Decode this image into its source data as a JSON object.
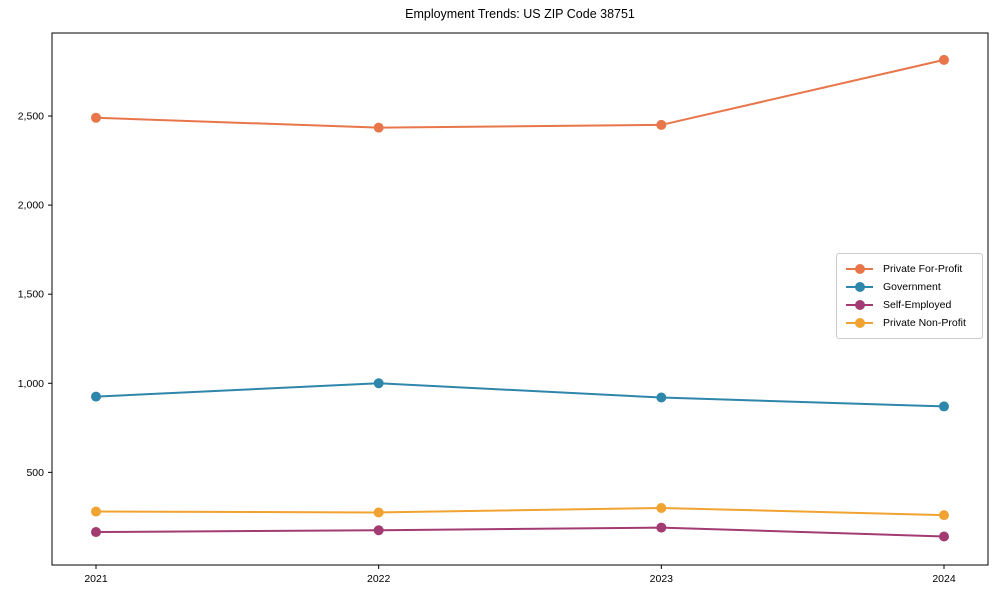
{
  "title": "Employment Trends: US ZIP Code 38751",
  "chart_data": {
    "type": "line",
    "title": "Employment Trends: US ZIP Code 38751",
    "x": [
      2021,
      2022,
      2023,
      2024
    ],
    "xtick_labels": [
      "2021",
      "2022",
      "2023",
      "2024"
    ],
    "series": [
      {
        "name": "Private For-Profit",
        "color": "#E8764A",
        "values": [
          2490,
          2435,
          2450,
          2815
        ]
      },
      {
        "name": "Government",
        "color": "#2E86AB",
        "values": [
          925,
          1000,
          920,
          870
        ]
      },
      {
        "name": "Self-Employed",
        "color": "#A23B72",
        "values": [
          165,
          175,
          190,
          140
        ]
      },
      {
        "name": "Private Non-Profit",
        "color": "#F0A330",
        "values": [
          280,
          275,
          300,
          260
        ]
      }
    ],
    "yticks": [
      500,
      1000,
      1500,
      2000,
      2500
    ],
    "ytick_labels": [
      "500",
      "1,000",
      "1,500",
      "2,000",
      "2,500"
    ],
    "ylim": [
      -20,
      2966
    ],
    "xlabel": "",
    "ylabel": "",
    "grid": false,
    "legend_position": "center-right",
    "marker": "circle",
    "frame": "box"
  }
}
